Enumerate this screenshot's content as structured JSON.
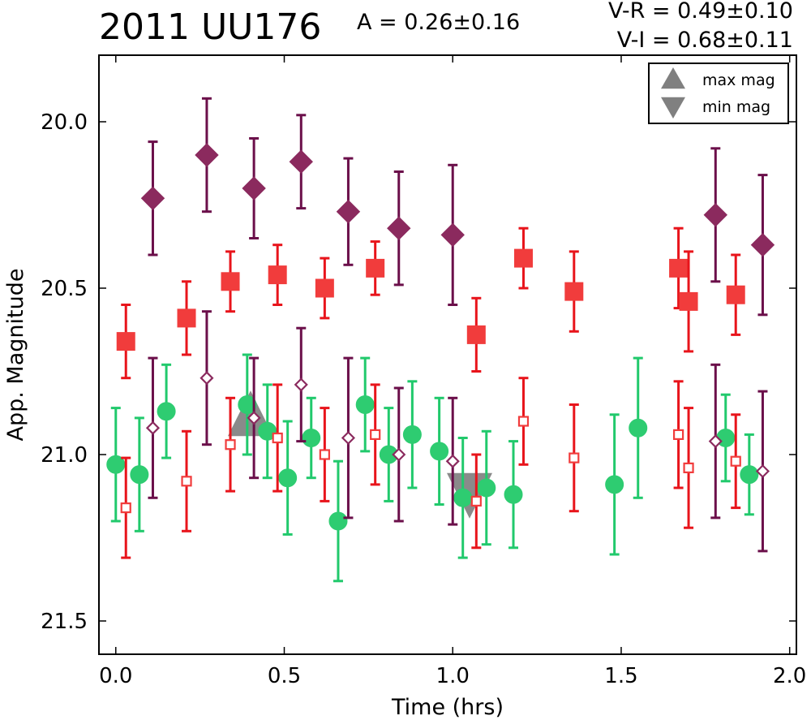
{
  "title": "2011 UU176",
  "amplitude": "A  = 0.26±0.16",
  "colors_text": [
    "V-R = 0.49±0.10",
    "V-I  = 0.68±0.11"
  ],
  "chart_data": {
    "type": "scatter",
    "xlabel": "Time (hrs)",
    "ylabel": "App. Magnitude",
    "xlim": [
      -0.05,
      2.02
    ],
    "ylim": [
      21.6,
      19.8
    ],
    "y_inverted": true,
    "xticks": [
      "0.0",
      "0.5",
      "1.0",
      "1.5",
      "2.0"
    ],
    "yticks": [
      "20.0",
      "20.5",
      "21.0",
      "21.5"
    ],
    "grid": false,
    "legend": {
      "placement": "top-right",
      "entries": [
        {
          "marker": "triangle-up",
          "label": "max mag",
          "color": "#808080"
        },
        {
          "marker": "triangle-down",
          "label": "min mag",
          "color": "#808080"
        }
      ]
    },
    "series": [
      {
        "marker": "diamond-filled",
        "color": "#8b2a5e",
        "errcolor": "#6b0f4a",
        "points": [
          {
            "x": 0.11,
            "y": 20.23,
            "err": 0.17
          },
          {
            "x": 0.27,
            "y": 20.1,
            "err": 0.17
          },
          {
            "x": 0.41,
            "y": 20.2,
            "err": 0.15
          },
          {
            "x": 0.55,
            "y": 20.12,
            "err": 0.14
          },
          {
            "x": 0.69,
            "y": 20.27,
            "err": 0.16
          },
          {
            "x": 0.84,
            "y": 20.32,
            "err": 0.17
          },
          {
            "x": 1.0,
            "y": 20.34,
            "err": 0.21
          },
          {
            "x": 1.78,
            "y": 20.28,
            "err": 0.2
          },
          {
            "x": 1.92,
            "y": 20.37,
            "err": 0.21
          }
        ]
      },
      {
        "marker": "square-filled",
        "color": "#f13c3c",
        "errcolor": "#e8141b",
        "points": [
          {
            "x": 0.03,
            "y": 20.66,
            "err": 0.11
          },
          {
            "x": 0.21,
            "y": 20.59,
            "err": 0.11
          },
          {
            "x": 0.34,
            "y": 20.48,
            "err": 0.09
          },
          {
            "x": 0.48,
            "y": 20.46,
            "err": 0.09
          },
          {
            "x": 0.62,
            "y": 20.5,
            "err": 0.09
          },
          {
            "x": 0.77,
            "y": 20.44,
            "err": 0.08
          },
          {
            "x": 1.07,
            "y": 20.64,
            "err": 0.11
          },
          {
            "x": 1.21,
            "y": 20.41,
            "err": 0.09
          },
          {
            "x": 1.36,
            "y": 20.51,
            "err": 0.12
          },
          {
            "x": 1.67,
            "y": 20.44,
            "err": 0.12
          },
          {
            "x": 1.7,
            "y": 20.54,
            "err": 0.15
          },
          {
            "x": 1.84,
            "y": 20.52,
            "err": 0.12
          }
        ]
      },
      {
        "marker": "circle-filled",
        "color": "#2ecc71",
        "errcolor": "#21c96c",
        "points": [
          {
            "x": 0.0,
            "y": 21.03,
            "err": 0.17
          },
          {
            "x": 0.07,
            "y": 21.06,
            "err": 0.17
          },
          {
            "x": 0.15,
            "y": 20.87,
            "err": 0.14
          },
          {
            "x": 0.39,
            "y": 20.85,
            "err": 0.15
          },
          {
            "x": 0.45,
            "y": 20.93,
            "err": 0.14
          },
          {
            "x": 0.51,
            "y": 21.07,
            "err": 0.17
          },
          {
            "x": 0.58,
            "y": 20.95,
            "err": 0.12
          },
          {
            "x": 0.66,
            "y": 21.2,
            "err": 0.18
          },
          {
            "x": 0.74,
            "y": 20.85,
            "err": 0.14
          },
          {
            "x": 0.81,
            "y": 21.0,
            "err": 0.14
          },
          {
            "x": 0.88,
            "y": 20.94,
            "err": 0.16
          },
          {
            "x": 0.96,
            "y": 20.99,
            "err": 0.16
          },
          {
            "x": 1.03,
            "y": 21.13,
            "err": 0.18
          },
          {
            "x": 1.1,
            "y": 21.1,
            "err": 0.17
          },
          {
            "x": 1.18,
            "y": 21.12,
            "err": 0.16
          },
          {
            "x": 1.48,
            "y": 21.09,
            "err": 0.21
          },
          {
            "x": 1.55,
            "y": 20.92,
            "err": 0.21
          },
          {
            "x": 1.81,
            "y": 20.95,
            "err": 0.13
          },
          {
            "x": 1.88,
            "y": 21.06,
            "err": 0.12
          }
        ]
      },
      {
        "marker": "diamond-open",
        "color": "#8b2a5e",
        "errcolor": "#6b0f4a",
        "points": [
          {
            "x": 0.11,
            "y": 20.92,
            "err": 0.21
          },
          {
            "x": 0.27,
            "y": 20.77,
            "err": 0.2
          },
          {
            "x": 0.41,
            "y": 20.89,
            "err": 0.18
          },
          {
            "x": 0.55,
            "y": 20.79,
            "err": 0.17
          },
          {
            "x": 0.69,
            "y": 20.95,
            "err": 0.24
          },
          {
            "x": 0.84,
            "y": 21.0,
            "err": 0.2
          },
          {
            "x": 1.0,
            "y": 21.02,
            "err": 0.19
          },
          {
            "x": 1.78,
            "y": 20.96,
            "err": 0.23
          },
          {
            "x": 1.92,
            "y": 21.05,
            "err": 0.24
          }
        ]
      },
      {
        "marker": "square-open",
        "color": "#f13c3c",
        "errcolor": "#e8141b",
        "points": [
          {
            "x": 0.03,
            "y": 21.16,
            "err": 0.15
          },
          {
            "x": 0.21,
            "y": 21.08,
            "err": 0.15
          },
          {
            "x": 0.34,
            "y": 20.97,
            "err": 0.14
          },
          {
            "x": 0.48,
            "y": 20.95,
            "err": 0.16
          },
          {
            "x": 0.62,
            "y": 21.0,
            "err": 0.14
          },
          {
            "x": 0.77,
            "y": 20.94,
            "err": 0.15
          },
          {
            "x": 1.07,
            "y": 21.14,
            "err": 0.14
          },
          {
            "x": 1.21,
            "y": 20.9,
            "err": 0.13
          },
          {
            "x": 1.36,
            "y": 21.01,
            "err": 0.16
          },
          {
            "x": 1.67,
            "y": 20.94,
            "err": 0.16
          },
          {
            "x": 1.7,
            "y": 21.04,
            "err": 0.18
          },
          {
            "x": 1.84,
            "y": 21.02,
            "err": 0.14
          }
        ]
      }
    ],
    "extrema_markers": [
      {
        "type": "max",
        "x": 0.4,
        "y": 20.89,
        "color": "#808080"
      },
      {
        "type": "min",
        "x": 1.05,
        "y": 21.11,
        "color": "#808080"
      }
    ]
  }
}
